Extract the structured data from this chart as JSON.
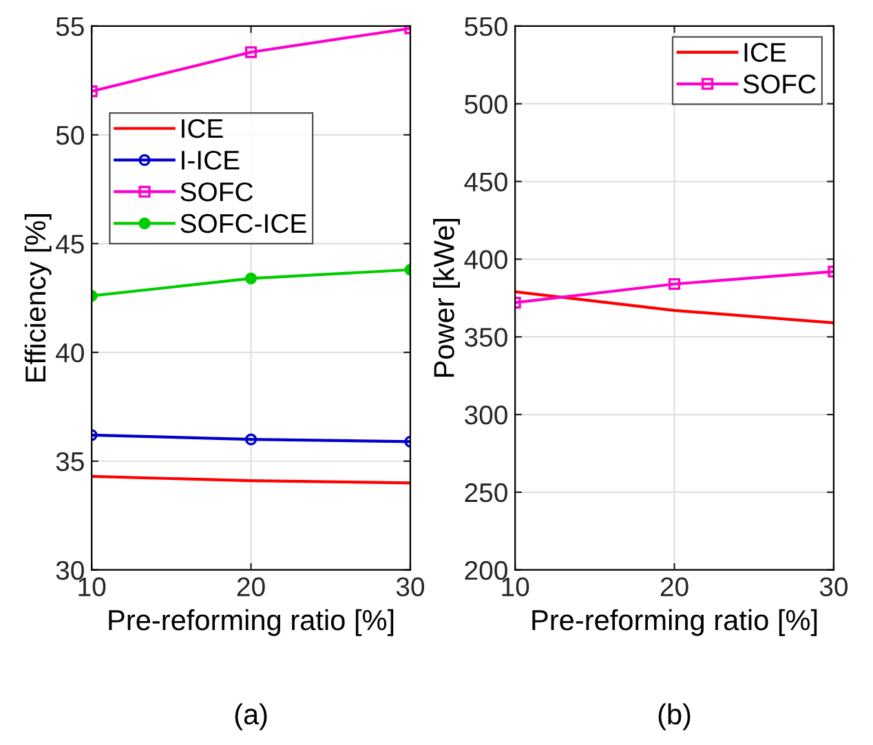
{
  "chart_data": [
    {
      "type": "line",
      "x": [
        10,
        20,
        30
      ],
      "xlabel": "Pre-reforming ratio [%]",
      "ylabel": "Efficiency [%]",
      "xlim": [
        10,
        30
      ],
      "xticks": [
        10,
        20,
        30
      ],
      "ylim": [
        30,
        55
      ],
      "yticks": [
        30,
        35,
        40,
        45,
        50,
        55
      ],
      "grid": true,
      "legend": "top left",
      "annotations": [
        "(a)"
      ],
      "series": [
        {
          "name": "ICE",
          "color": "#ff0000",
          "marker": "none",
          "values": [
            34.3,
            34.1,
            34.0
          ]
        },
        {
          "name": "I-ICE",
          "color": "#0000cc",
          "marker": "circle",
          "values": [
            36.2,
            36.0,
            35.9
          ]
        },
        {
          "name": "SOFC",
          "color": "#ff00cc",
          "marker": "square",
          "values": [
            52.0,
            53.8,
            54.9
          ]
        },
        {
          "name": "SOFC-ICE",
          "color": "#00cc00",
          "marker": "circle",
          "values": [
            42.6,
            43.4,
            43.8
          ]
        }
      ]
    },
    {
      "type": "line",
      "x": [
        10,
        20,
        30
      ],
      "xlabel": "Pre-reforming ratio [%]",
      "ylabel": "Power [kWe]",
      "xlim": [
        10,
        30
      ],
      "xticks": [
        10,
        20,
        30
      ],
      "ylim": [
        200,
        550
      ],
      "yticks": [
        200,
        250,
        300,
        350,
        400,
        450,
        500,
        550
      ],
      "grid": true,
      "legend": "top right",
      "annotations": [
        "(b)"
      ],
      "series": [
        {
          "name": "ICE",
          "color": "#ff0000",
          "marker": "none",
          "values": [
            379,
            367,
            359
          ]
        },
        {
          "name": "SOFC",
          "color": "#ff00cc",
          "marker": "square",
          "values": [
            372,
            384,
            392
          ]
        }
      ]
    }
  ]
}
